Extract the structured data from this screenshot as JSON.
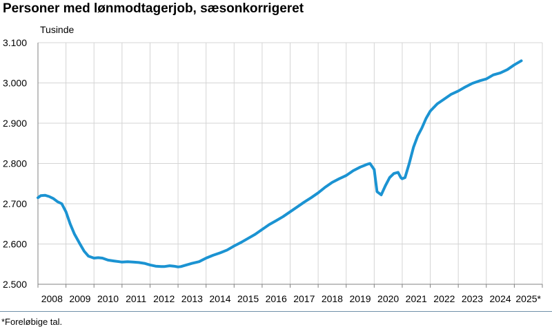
{
  "title": "Personer med lønmodtagerjob, sæsonkorrigeret",
  "footnote": "*Foreløbige tal.",
  "chart_data": {
    "type": "line",
    "title": "Personer med lønmodtagerjob, sæsonkorrigeret",
    "ylabel": "Tusinde",
    "xlabel": "",
    "ylim": [
      2500,
      3100
    ],
    "yticks": [
      2500,
      2600,
      2700,
      2800,
      2900,
      3000,
      3100
    ],
    "ytick_labels": [
      "2.500",
      "2.600",
      "2.700",
      "2.800",
      "2.900",
      "3.000",
      "3.100"
    ],
    "xlim": [
      2008,
      2026
    ],
    "categories": [
      "2008",
      "2009",
      "2010",
      "2011",
      "2012",
      "2013",
      "2014",
      "2015",
      "2016",
      "2017",
      "2018",
      "2019",
      "2020",
      "2021",
      "2022",
      "2023",
      "2024",
      "2025*"
    ],
    "grid": true,
    "legend": "none",
    "colors": {
      "line": "#1b93d2",
      "grid": "#d4d4d4",
      "axis": "#808080",
      "rule": "#6f8fa8"
    },
    "series": [
      {
        "x": [
          2008.0,
          2008.1,
          2008.25,
          2008.4,
          2008.55,
          2008.7,
          2008.85,
          2009.0,
          2009.15,
          2009.3,
          2009.5,
          2009.65,
          2009.8,
          2010.0,
          2010.15,
          2010.3,
          2010.5,
          2010.7,
          2010.9,
          2011.0,
          2011.2,
          2011.4,
          2011.6,
          2011.8,
          2012.0,
          2012.2,
          2012.4,
          2012.5,
          2012.7,
          2012.85,
          2013.0,
          2013.1,
          2013.3,
          2013.5,
          2013.75,
          2014.0,
          2014.25,
          2014.5,
          2014.75,
          2015.0,
          2015.25,
          2015.5,
          2015.75,
          2016.0,
          2016.25,
          2016.5,
          2016.75,
          2017.0,
          2017.25,
          2017.5,
          2017.75,
          2018.0,
          2018.25,
          2018.5,
          2018.75,
          2019.0,
          2019.25,
          2019.5,
          2019.65,
          2019.75,
          2019.85,
          2020.0,
          2020.1,
          2020.25,
          2020.4,
          2020.55,
          2020.7,
          2020.85,
          2020.95,
          2021.0,
          2021.1,
          2021.25,
          2021.4,
          2021.55,
          2021.7,
          2021.85,
          2022.0,
          2022.25,
          2022.5,
          2022.75,
          2023.0,
          2023.25,
          2023.5,
          2023.75,
          2024.0,
          2024.25,
          2024.5,
          2024.75,
          2025.0,
          2025.25
        ],
        "values": [
          2715,
          2720,
          2721,
          2718,
          2713,
          2705,
          2700,
          2680,
          2650,
          2625,
          2600,
          2582,
          2570,
          2565,
          2566,
          2565,
          2560,
          2558,
          2556,
          2555,
          2556,
          2555,
          2554,
          2552,
          2548,
          2545,
          2544,
          2544,
          2546,
          2545,
          2543,
          2544,
          2548,
          2552,
          2556,
          2565,
          2572,
          2578,
          2585,
          2595,
          2604,
          2614,
          2624,
          2636,
          2648,
          2658,
          2668,
          2680,
          2692,
          2704,
          2715,
          2727,
          2741,
          2753,
          2762,
          2770,
          2782,
          2791,
          2795,
          2798,
          2800,
          2785,
          2730,
          2722,
          2745,
          2765,
          2775,
          2778,
          2765,
          2762,
          2765,
          2800,
          2840,
          2868,
          2888,
          2912,
          2930,
          2948,
          2960,
          2972,
          2980,
          2990,
          2999,
          3005,
          3010,
          3020,
          3025,
          3033,
          3045,
          3055
        ]
      }
    ]
  }
}
